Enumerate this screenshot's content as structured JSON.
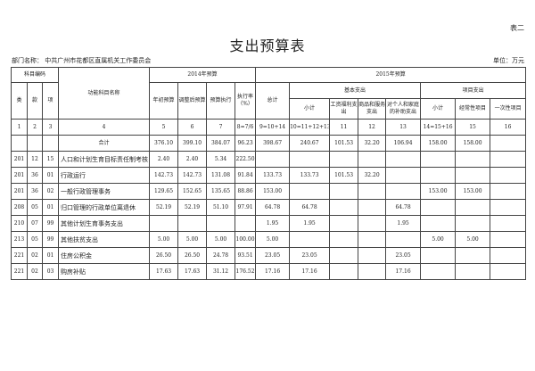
{
  "corner": "表二",
  "title": "支出预算表",
  "dept_label": "部门名称：",
  "dept": "中共广州市花都区直属机关工作委员会",
  "unit": "单位：万元",
  "headers": {
    "code": "科目编码",
    "lei": "类",
    "kuan": "款",
    "xiang": "项",
    "name": "功能科目名称",
    "y2014": "2014年预算",
    "y2015": "2015年预算",
    "initial": "年初预算",
    "adjusted": "调整后预算",
    "executed": "预算执行",
    "rate": "执行率（%）",
    "total": "总计",
    "basic": "基本支出",
    "project": "项目支出",
    "basic_sub": "小计",
    "wages": "工资福利支出",
    "goods": "商品和服务支出",
    "personal": "对个人和家庭的补助支出",
    "proj_sub": "小计",
    "recurring": "经常性项目",
    "onetime": "一次性项目"
  },
  "number_row": [
    "1",
    "2",
    "3",
    "4",
    "5",
    "6",
    "7",
    "8=7/6",
    "9=10+14",
    "10=11+12+13",
    "11",
    "12",
    "13",
    "14=15+16",
    "15",
    "16"
  ],
  "rows": [
    [
      "",
      "",
      "",
      "合计",
      "376.10",
      "399.10",
      "384.07",
      "96.23",
      "398.67",
      "240.67",
      "101.53",
      "32.20",
      "106.94",
      "158.00",
      "158.00",
      ""
    ],
    [
      "201",
      "12",
      "15",
      "人口和计划生育目标责任制考核",
      "2.40",
      "2.40",
      "5.34",
      "222.50",
      "",
      "",
      "",
      "",
      "",
      "",
      "",
      ""
    ],
    [
      "201",
      "36",
      "01",
      "行政运行",
      "142.73",
      "142.73",
      "131.08",
      "91.84",
      "133.73",
      "133.73",
      "101.53",
      "32.20",
      "",
      "",
      "",
      ""
    ],
    [
      "201",
      "36",
      "02",
      "一般行政管理事务",
      "129.65",
      "152.65",
      "135.65",
      "88.86",
      "153.00",
      "",
      "",
      "",
      "",
      "153.00",
      "153.00",
      ""
    ],
    [
      "208",
      "05",
      "01",
      "归口管理的行政单位离退休",
      "52.19",
      "52.19",
      "51.10",
      "97.91",
      "64.78",
      "64.78",
      "",
      "",
      "64.78",
      "",
      "",
      ""
    ],
    [
      "210",
      "07",
      "99",
      "其他计划生育事务支出",
      "",
      "",
      "",
      "",
      "1.95",
      "1.95",
      "",
      "",
      "1.95",
      "",
      "",
      ""
    ],
    [
      "213",
      "05",
      "99",
      "其他扶贫支出",
      "5.00",
      "5.00",
      "5.00",
      "100.00",
      "5.00",
      "",
      "",
      "",
      "",
      "5.00",
      "5.00",
      ""
    ],
    [
      "221",
      "02",
      "01",
      "住房公积金",
      "26.50",
      "26.50",
      "24.78",
      "93.51",
      "23.05",
      "23.05",
      "",
      "",
      "23.05",
      "",
      "",
      ""
    ],
    [
      "221",
      "02",
      "03",
      "购房补贴",
      "17.63",
      "17.63",
      "31.12",
      "176.52",
      "17.16",
      "17.16",
      "",
      "",
      "17.16",
      "",
      "",
      ""
    ]
  ]
}
